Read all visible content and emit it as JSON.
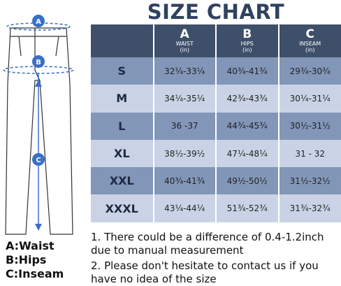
{
  "title": "SIZE CHART",
  "table": {
    "header": [
      {
        "letter": "A",
        "name": "WAIST",
        "unit": "(in)"
      },
      {
        "letter": "B",
        "name": "HIPS",
        "unit": "(in)"
      },
      {
        "letter": "C",
        "name": "INSEAM",
        "unit": "(in)"
      }
    ],
    "rows": [
      [
        "S",
        "32¼-33¼",
        "40¾-41¾",
        "29¾-30¾"
      ],
      [
        "M",
        "34¼-35¼",
        "42¾-43¾",
        "30¼-31¼"
      ],
      [
        "L",
        "36 -37",
        "44¾-45¾",
        "30½-31½"
      ],
      [
        "XL",
        "38½-39½",
        "47¼-48¼",
        "31 - 32"
      ],
      [
        "XXL",
        "40¾-41¾",
        "49½-50½",
        "31½-32½"
      ],
      [
        "XXXL",
        "43¼-44¼",
        "51¾-52¾",
        "31¾-32¾"
      ]
    ]
  },
  "diagram": {
    "markers": [
      "A",
      "B",
      "C"
    ]
  },
  "legend": [
    "A:Waist",
    "B:Hips",
    "C:Inseam"
  ],
  "notes": [
    "1. There could be a difference of 0.4-1.2inch due to manual measurement",
    "2. Please don't hesitate to contact us if you have no idea of the size"
  ]
}
